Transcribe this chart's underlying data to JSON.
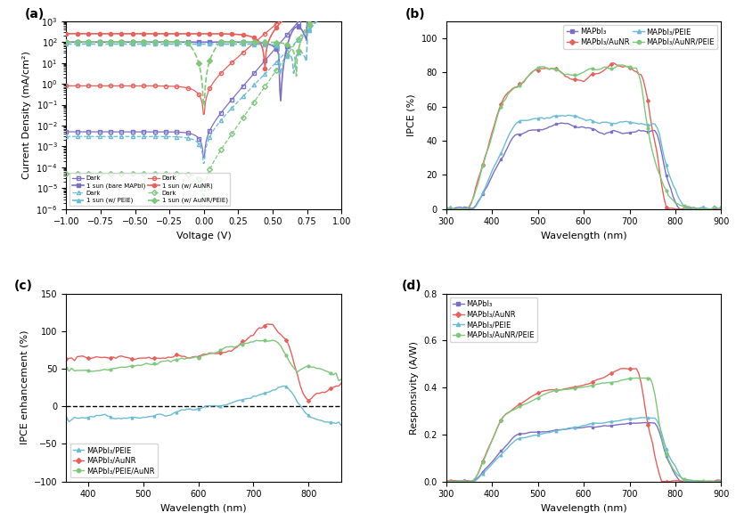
{
  "colors": {
    "purple": "#7B6FC4",
    "red": "#E8605A",
    "sky_blue": "#6BBBD4",
    "green": "#7DC87A"
  },
  "panel_a": {
    "xlabel": "Voltage (V)",
    "ylabel": "Current Density (mA/cm²)",
    "xlim": [
      -1.0,
      1.0
    ],
    "ylim": [
      1e-06,
      1000.0
    ]
  },
  "panel_b": {
    "xlabel": "Wavelength (nm)",
    "ylabel": "IPCE (%)",
    "xlim": [
      300,
      900
    ],
    "ylim": [
      0,
      110
    ]
  },
  "panel_c": {
    "xlabel": "Wavelength (nm)",
    "ylabel": "IPCE enhancement (%)",
    "xlim": [
      360,
      860
    ],
    "ylim": [
      -100,
      150
    ]
  },
  "panel_d": {
    "xlabel": "Wavelength (nm)",
    "ylabel": "Responsivity (A/W)",
    "xlim": [
      300,
      900
    ],
    "ylim": [
      0,
      0.8
    ]
  }
}
